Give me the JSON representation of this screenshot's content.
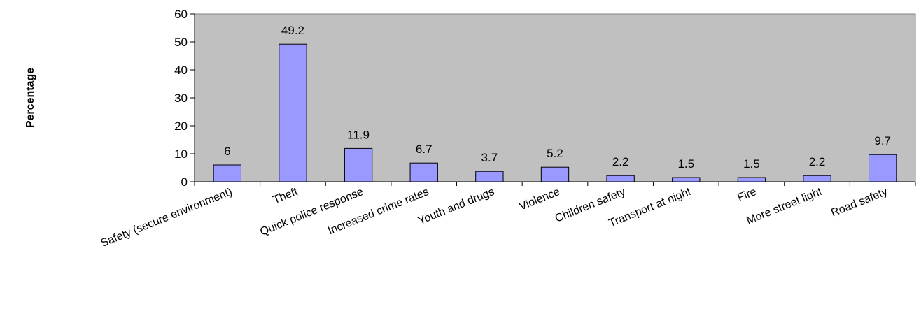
{
  "chart_data": {
    "type": "bar",
    "title": "",
    "xlabel": "",
    "ylabel": "Percentage",
    "ylim": [
      0,
      60
    ],
    "yticks": [
      0,
      10,
      20,
      30,
      40,
      50,
      60
    ],
    "grid": false,
    "legend": "none",
    "categories": [
      "Safety (secure environment)",
      "Theft",
      "Quick police response",
      "Increased crime rates",
      "Youth and drugs",
      "Violence",
      "Children safety",
      "Transport at night",
      "Fire",
      "More street light",
      "Road safety"
    ],
    "values": [
      6,
      49.2,
      11.9,
      6.7,
      3.7,
      5.2,
      2.2,
      1.5,
      1.5,
      2.2,
      9.7
    ],
    "data_labels": [
      "6",
      "49.2",
      "11.9",
      "6.7",
      "3.7",
      "5.2",
      "2.2",
      "1.5",
      "1.5",
      "2.2",
      "9.7"
    ],
    "colors": {
      "plot_background": "#C0C0C0",
      "bar_fill": "#9999FF",
      "bar_stroke": "#000000",
      "axis": "#000000",
      "text": "#000000"
    }
  }
}
